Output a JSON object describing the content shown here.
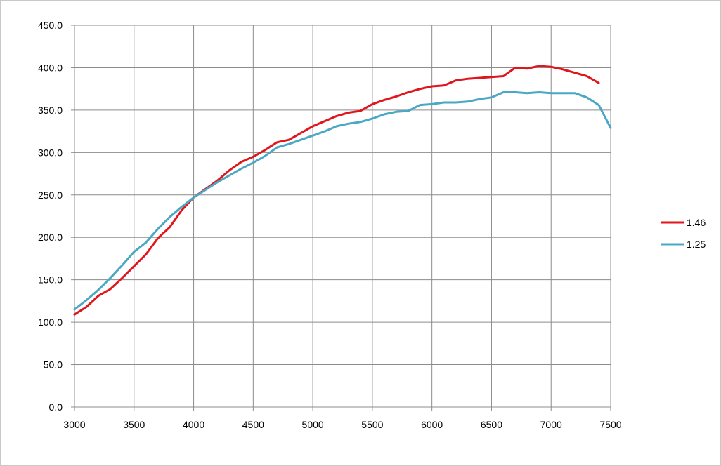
{
  "chart_data": {
    "type": "line",
    "title": "",
    "xlabel": "",
    "ylabel": "",
    "xlim": [
      3000,
      7500
    ],
    "ylim": [
      0,
      450
    ],
    "x_ticks": [
      3000,
      3500,
      4000,
      4500,
      5000,
      5500,
      6000,
      6500,
      7000,
      7500
    ],
    "y_ticks": [
      "0.0",
      "50.0",
      "100.0",
      "150.0",
      "200.0",
      "250.0",
      "300.0",
      "350.0",
      "400.0",
      "450.0"
    ],
    "grid": true,
    "legend_position": "right",
    "series": [
      {
        "name": "1.46",
        "color": "#e0161c",
        "points": [
          [
            3000,
            109
          ],
          [
            3100,
            118
          ],
          [
            3200,
            131
          ],
          [
            3300,
            139
          ],
          [
            3400,
            152
          ],
          [
            3500,
            166
          ],
          [
            3600,
            180
          ],
          [
            3700,
            199
          ],
          [
            3800,
            212
          ],
          [
            3900,
            232
          ],
          [
            4000,
            247
          ],
          [
            4100,
            257
          ],
          [
            4200,
            267
          ],
          [
            4300,
            279
          ],
          [
            4400,
            289
          ],
          [
            4500,
            295
          ],
          [
            4600,
            303
          ],
          [
            4700,
            312
          ],
          [
            4800,
            315
          ],
          [
            4900,
            323
          ],
          [
            5000,
            331
          ],
          [
            5100,
            337
          ],
          [
            5200,
            343
          ],
          [
            5300,
            347
          ],
          [
            5400,
            349
          ],
          [
            5500,
            357
          ],
          [
            5600,
            362
          ],
          [
            5700,
            366
          ],
          [
            5800,
            371
          ],
          [
            5900,
            375
          ],
          [
            6000,
            378
          ],
          [
            6100,
            379
          ],
          [
            6200,
            385
          ],
          [
            6300,
            387
          ],
          [
            6400,
            388
          ],
          [
            6500,
            389
          ],
          [
            6600,
            390
          ],
          [
            6700,
            400
          ],
          [
            6800,
            399
          ],
          [
            6900,
            402
          ],
          [
            7000,
            401
          ],
          [
            7100,
            398
          ],
          [
            7200,
            394
          ],
          [
            7300,
            390
          ],
          [
            7400,
            382
          ]
        ]
      },
      {
        "name": "1.25",
        "color": "#4aa8c4",
        "points": [
          [
            3000,
            115
          ],
          [
            3100,
            126
          ],
          [
            3200,
            138
          ],
          [
            3300,
            152
          ],
          [
            3400,
            167
          ],
          [
            3500,
            183
          ],
          [
            3600,
            194
          ],
          [
            3700,
            210
          ],
          [
            3800,
            224
          ],
          [
            3900,
            236
          ],
          [
            4000,
            247
          ],
          [
            4100,
            256
          ],
          [
            4200,
            265
          ],
          [
            4300,
            273
          ],
          [
            4400,
            281
          ],
          [
            4500,
            288
          ],
          [
            4600,
            296
          ],
          [
            4700,
            306
          ],
          [
            4800,
            310
          ],
          [
            4900,
            315
          ],
          [
            5000,
            320
          ],
          [
            5100,
            325
          ],
          [
            5200,
            331
          ],
          [
            5300,
            334
          ],
          [
            5400,
            336
          ],
          [
            5500,
            340
          ],
          [
            5600,
            345
          ],
          [
            5700,
            348
          ],
          [
            5800,
            349
          ],
          [
            5900,
            356
          ],
          [
            6000,
            357
          ],
          [
            6100,
            359
          ],
          [
            6200,
            359
          ],
          [
            6300,
            360
          ],
          [
            6400,
            363
          ],
          [
            6500,
            365
          ],
          [
            6600,
            371
          ],
          [
            6700,
            371
          ],
          [
            6800,
            370
          ],
          [
            6900,
            371
          ],
          [
            7000,
            370
          ],
          [
            7100,
            370
          ],
          [
            7200,
            370
          ],
          [
            7300,
            365
          ],
          [
            7400,
            356
          ],
          [
            7500,
            329
          ]
        ]
      }
    ]
  }
}
